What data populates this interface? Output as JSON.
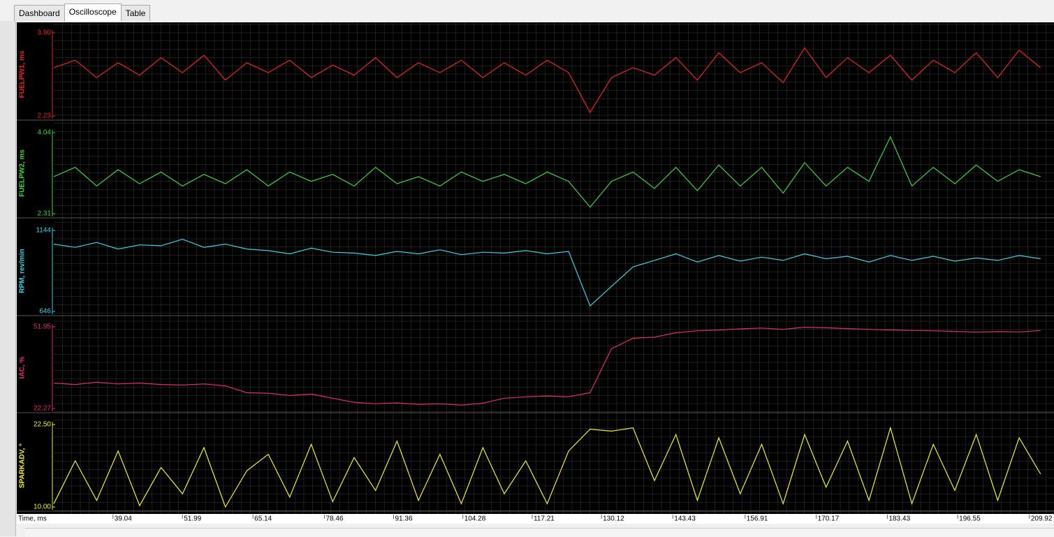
{
  "tabs": [
    "Dashboard",
    "Oscilloscope",
    "Table"
  ],
  "chart_data": [
    {
      "type": "line",
      "ylabel": "FUELPW1, ms",
      "color": "#e8262a",
      "ylim": [
        2.23,
        3.9
      ],
      "yticks": [
        {
          "value": 3.9,
          "label": "3.90"
        },
        2.23
      ],
      "values": [
        3.2,
        3.35,
        3.0,
        3.3,
        3.05,
        3.4,
        3.1,
        3.45,
        2.95,
        3.3,
        3.1,
        3.35,
        3.0,
        3.25,
        3.05,
        3.4,
        3.0,
        3.3,
        3.1,
        3.35,
        3.0,
        3.3,
        3.05,
        3.35,
        3.1,
        2.3,
        3.0,
        3.2,
        3.05,
        3.4,
        2.95,
        3.5,
        3.1,
        3.3,
        2.9,
        3.6,
        3.0,
        3.4,
        3.1,
        3.45,
        2.95,
        3.35,
        3.1,
        3.5,
        3.0,
        3.55,
        3.2
      ]
    },
    {
      "type": "line",
      "ylabel": "FUELPW2, ms",
      "color": "#3ed63e",
      "ylim": [
        2.31,
        4.04
      ],
      "yticks": [
        4.04,
        2.31
      ],
      "values": [
        3.1,
        3.3,
        2.9,
        3.25,
        2.95,
        3.2,
        2.9,
        3.15,
        2.95,
        3.25,
        2.9,
        3.2,
        3.0,
        3.15,
        2.9,
        3.3,
        2.95,
        3.1,
        2.9,
        3.2,
        3.0,
        3.15,
        2.95,
        3.2,
        3.0,
        2.45,
        3.0,
        3.2,
        2.85,
        3.3,
        2.8,
        3.35,
        2.9,
        3.3,
        2.75,
        3.4,
        2.9,
        3.3,
        3.0,
        3.95,
        2.9,
        3.3,
        2.95,
        3.35,
        3.0,
        3.25,
        3.1
      ]
    },
    {
      "type": "line",
      "ylabel": "RPM, rev/min",
      "color": "#3cd2e6",
      "ylim": [
        646,
        1144
      ],
      "yticks": [
        1144,
        646
      ],
      "values": [
        1060,
        1040,
        1070,
        1030,
        1055,
        1050,
        1090,
        1040,
        1060,
        1030,
        1020,
        1000,
        1035,
        1010,
        1005,
        990,
        1015,
        1000,
        1025,
        995,
        1010,
        1005,
        1020,
        1000,
        1015,
        680,
        800,
        920,
        960,
        1000,
        950,
        990,
        955,
        980,
        960,
        1000,
        970,
        985,
        950,
        990,
        960,
        985,
        955,
        975,
        960,
        990,
        970
      ]
    },
    {
      "type": "line",
      "ylabel": "IAC, %",
      "color": "#e0306a",
      "ylim": [
        22.27,
        51.95
      ],
      "yticks": [
        51.95,
        22.27
      ],
      "values": [
        31.5,
        31.0,
        31.8,
        31.2,
        31.5,
        31.0,
        30.8,
        31.2,
        30.5,
        28.0,
        27.8,
        27.0,
        27.5,
        26.0,
        24.5,
        24.0,
        24.3,
        23.8,
        24.0,
        23.5,
        24.2,
        26.0,
        26.5,
        26.8,
        26.5,
        28.0,
        44.0,
        47.8,
        48.2,
        49.8,
        50.5,
        50.8,
        51.2,
        51.5,
        51.0,
        51.8,
        51.6,
        51.3,
        51.0,
        50.8,
        50.6,
        50.5,
        50.3,
        50.0,
        50.2,
        50.1,
        50.6
      ]
    },
    {
      "type": "line",
      "ylabel": "SPARKADV, °",
      "color": "#f0f032",
      "ylim": [
        10,
        22.5
      ],
      "yticks": [
        {
          "value": 22.5,
          "label": "22.50"
        },
        {
          "value": 10,
          "label": "10.00"
        }
      ],
      "values": [
        10.5,
        17.0,
        11.0,
        18.5,
        10.2,
        16.0,
        12.0,
        19.0,
        10.0,
        15.5,
        18.0,
        11.5,
        19.5,
        10.8,
        17.5,
        12.5,
        20.0,
        11.0,
        18.0,
        10.5,
        19.0,
        12.0,
        17.0,
        10.5,
        18.5,
        21.8,
        21.5,
        22.0,
        14.0,
        21.0,
        11.0,
        20.5,
        12.0,
        19.5,
        10.5,
        21.0,
        13.0,
        20.0,
        11.0,
        22.0,
        10.5,
        19.5,
        12.5,
        21.0,
        11.0,
        20.5,
        15.0
      ],
      "xlabel": "Time, ms",
      "xlim": [
        28,
        214.5
      ],
      "xticks": [
        39.04,
        51.99,
        65.14,
        78.46,
        91.36,
        104.28,
        117.21,
        130.12,
        143.43,
        156.91,
        170.17,
        183.43,
        196.55,
        209.92
      ],
      "x": [
        28,
        32,
        36,
        40,
        44,
        48,
        52,
        56,
        60,
        64,
        68,
        72,
        76,
        80,
        84,
        88,
        92,
        96,
        100,
        104,
        108,
        112,
        116,
        120,
        124,
        128,
        132,
        136,
        140,
        144,
        148,
        152,
        156,
        160,
        164,
        168,
        172,
        176,
        180,
        184,
        188,
        192,
        196,
        200,
        204,
        208,
        212
      ]
    }
  ]
}
